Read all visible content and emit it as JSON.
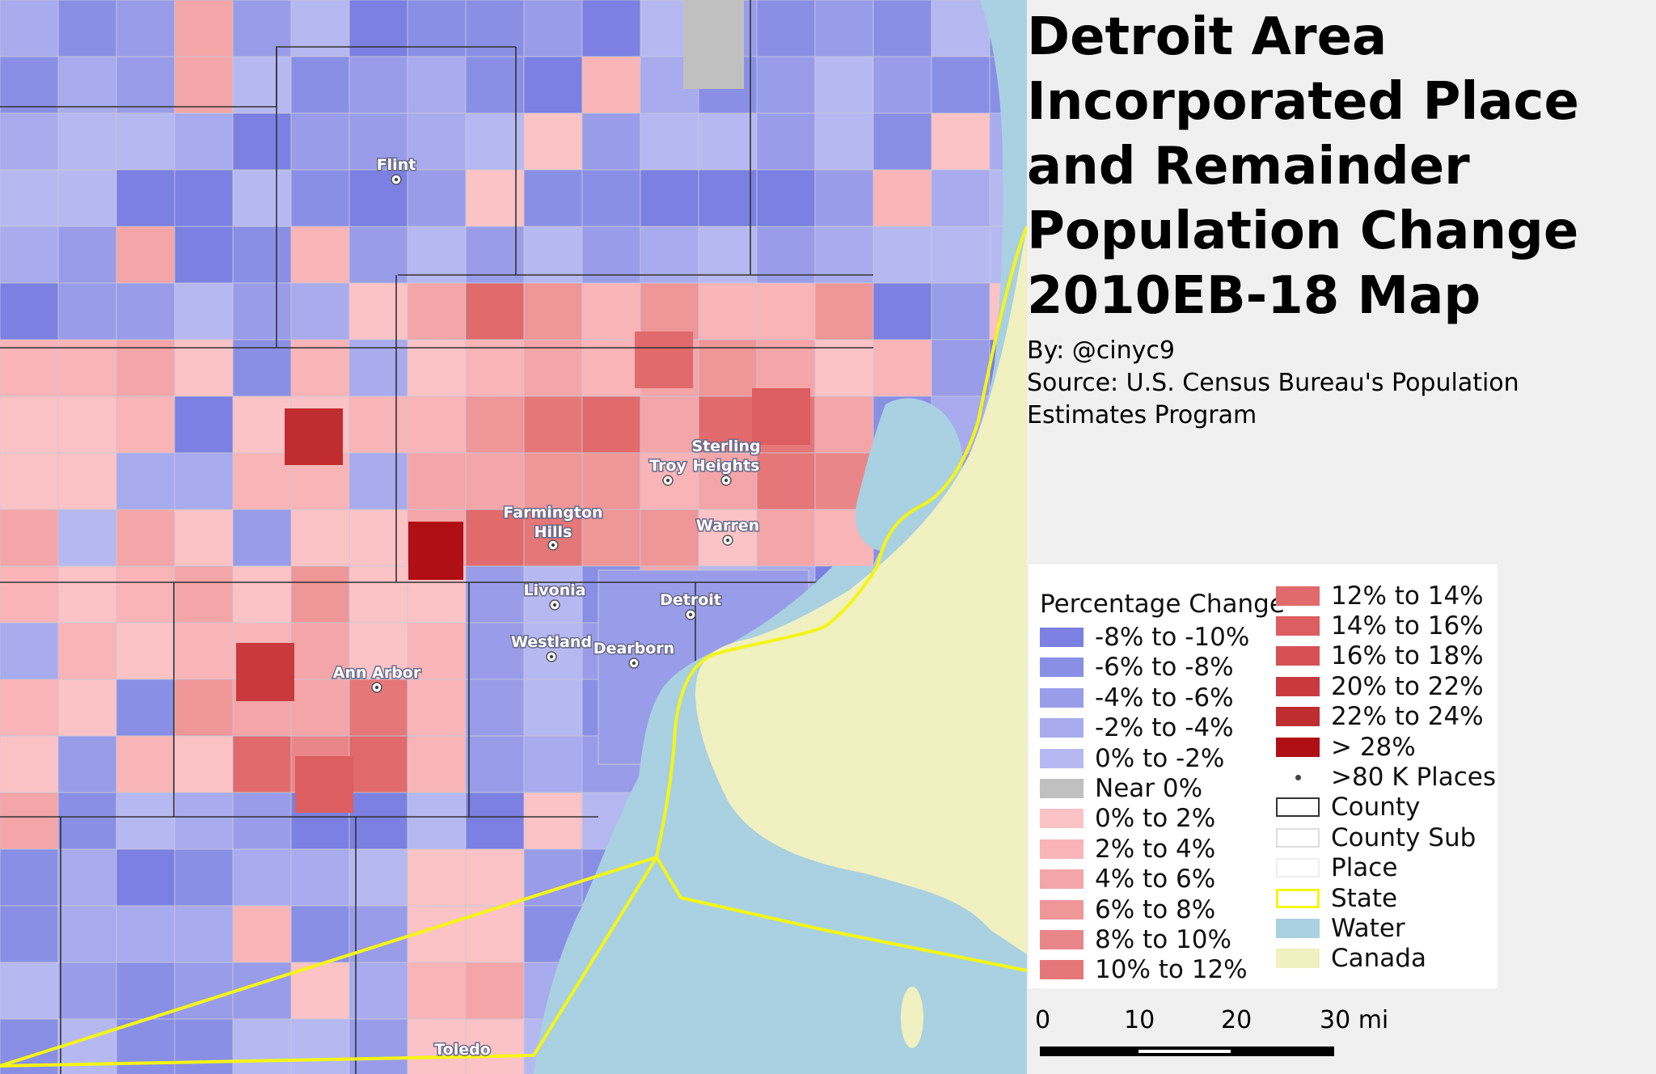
{
  "title": "Detroit Area Incorporated Place and Remainder Population Change 2010EB-18 Map",
  "byline": {
    "author": "By: @cinyc9",
    "source": "Source: U.S. Census Bureau's Population Estimates Program"
  },
  "legend": {
    "title": "Percentage Change",
    "items": [
      {
        "label": "-8% to -10%",
        "color": "#7b80e2"
      },
      {
        "label": "-6% to -8%",
        "color": "#8a8fe6"
      },
      {
        "label": "-4% to -6%",
        "color": "#999de9"
      },
      {
        "label": "-2% to -4%",
        "color": "#a8abed"
      },
      {
        "label": "0% to -2%",
        "color": "#b6b9f1"
      },
      {
        "label": "Near 0%",
        "color": "#c0c0c0"
      },
      {
        "label": "0% to 2%",
        "color": "#fbc3c6"
      },
      {
        "label": "2% to 4%",
        "color": "#f8b4b7"
      },
      {
        "label": "4% to 6%",
        "color": "#f4a5a8"
      },
      {
        "label": "6% to 8%",
        "color": "#ef9698"
      },
      {
        "label": "8% to 10%",
        "color": "#e98689"
      },
      {
        "label": "10% to 12%",
        "color": "#e57779"
      },
      {
        "label": "12% to 14%",
        "color": "#e06a6c"
      },
      {
        "label": "14% to 16%",
        "color": "#dc5e60"
      },
      {
        "label": "16% to 18%",
        "color": "#d65153"
      },
      {
        "label": "20% to 22%",
        "color": "#c83a3e"
      },
      {
        "label": "22% to 24%",
        "color": "#c02d30"
      },
      {
        "label": "> 28%",
        "color": "#b01015"
      }
    ],
    "symbols": [
      {
        "label": ">80 K Places",
        "type": "dot"
      },
      {
        "label": "County",
        "type": "outline",
        "stroke": "#333333"
      },
      {
        "label": "County Sub",
        "type": "outline",
        "stroke": "#dddddd"
      },
      {
        "label": "Place",
        "type": "outline",
        "stroke": "#eeeeee"
      },
      {
        "label": "State",
        "type": "outline",
        "stroke": "#f5f516"
      },
      {
        "label": "Water",
        "type": "fill",
        "color": "#a9d1e2"
      },
      {
        "label": "Canada",
        "type": "fill",
        "color": "#f0f0c0"
      }
    ]
  },
  "scale": {
    "ticks": [
      "0",
      "10",
      "20",
      "30 mi"
    ]
  },
  "cities": [
    {
      "label": "Flint"
    },
    {
      "label": "Troy"
    },
    {
      "label": "Sterling Heights"
    },
    {
      "label": "Farmington Hills"
    },
    {
      "label": "Warren"
    },
    {
      "label": "Livonia"
    },
    {
      "label": "Detroit"
    },
    {
      "label": "Westland"
    },
    {
      "label": "Dearborn"
    },
    {
      "label": "Ann Arbor"
    },
    {
      "label": "Toledo"
    }
  ],
  "map": {
    "colors": {
      "water": "#a9d1e2",
      "canada": "#f0f0c0",
      "state": "#f5f516",
      "county": "#333333"
    }
  }
}
